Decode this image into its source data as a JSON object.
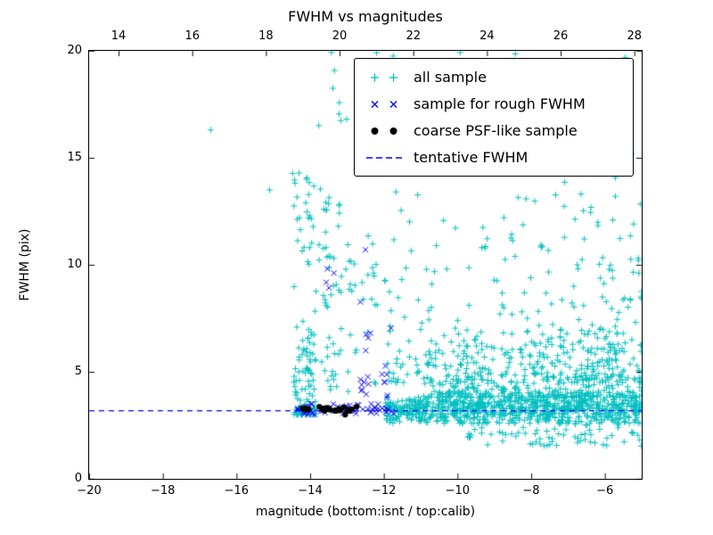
{
  "figure": {
    "title": "FWHM vs magnitudes",
    "xlabel": "magnitude (bottom:isnt / top:calib)",
    "ylabel": "FWHM (pix)"
  },
  "chart_data": {
    "type": "scatter",
    "title": "FWHM vs magnitudes",
    "xlabel": "magnitude (bottom:isnt / top:calib)",
    "ylabel": "FWHM (pix)",
    "xlim": [
      -20,
      -5
    ],
    "ylim": [
      0,
      20
    ],
    "x_ticks_bottom": [
      -20,
      -18,
      -16,
      -14,
      -12,
      -10,
      -8,
      -6
    ],
    "x_ticks_top": [
      14,
      16,
      18,
      20,
      22,
      24,
      26,
      28
    ],
    "x_top_range": [
      13.2,
      28.2
    ],
    "y_ticks": [
      0,
      5,
      10,
      15,
      20
    ],
    "grid": false,
    "legend_position": "upper right",
    "seed": 1337,
    "series": [
      {
        "name": "all sample",
        "marker": "plus",
        "color": "#00bfbf",
        "clusters": [
          {
            "count": 750,
            "x": [
              -11.95,
              -5.0
            ],
            "y": [
              2.6,
              4.0
            ],
            "yshape": "gauss"
          },
          {
            "count": 420,
            "x": [
              -10.9,
              -5.0
            ],
            "y": [
              3.8,
              7.0
            ],
            "yshape": "decay"
          },
          {
            "count": 230,
            "x": [
              -12.0,
              -5.0
            ],
            "y": [
              4.5,
              14.0
            ],
            "yshape": "decay"
          },
          {
            "count": 48,
            "x": [
              -12.2,
              -5.0
            ],
            "y": [
              14.0,
              20.0
            ],
            "yshape": "uniform"
          },
          {
            "count": 90,
            "x": [
              -9.8,
              -5.0
            ],
            "y": [
              1.5,
              2.9
            ],
            "yshape": "uniform"
          },
          {
            "count": 95,
            "x": [
              -14.45,
              -13.85
            ],
            "y": [
              3.0,
              7.0
            ],
            "yshape": "decay"
          },
          {
            "count": 40,
            "x": [
              -14.5,
              -13.55
            ],
            "y": [
              7.0,
              14.5
            ],
            "yshape": "uniform"
          },
          {
            "count": 30,
            "x": [
              -13.6,
              -12.9
            ],
            "y": [
              7.0,
              14.0
            ],
            "yshape": "uniform"
          },
          {
            "count": 25,
            "x": [
              -13.7,
              -12.2
            ],
            "y": [
              4.0,
              7.0
            ],
            "yshape": "uniform"
          },
          {
            "count": 20,
            "x": [
              -13.8,
              -11.6
            ],
            "y": [
              16.5,
              20.0
            ],
            "yshape": "uniform"
          },
          {
            "count": 16,
            "x": [
              -12.9,
              -12.1
            ],
            "y": [
              8.0,
              11.5
            ],
            "yshape": "uniform"
          },
          {
            "count": 40,
            "x": [
              -6.2,
              -5.0
            ],
            "y": [
              2.0,
              12.0
            ],
            "yshape": "uniform"
          }
        ],
        "points": [
          [
            -16.7,
            16.3
          ],
          [
            -15.1,
            13.5
          ]
        ]
      },
      {
        "name": "sample for rough FWHM",
        "marker": "x",
        "color": "#0000ff",
        "clusters": [
          {
            "count": 60,
            "x": [
              -14.35,
              -11.7
            ],
            "y": [
              3.0,
              3.55
            ],
            "yshape": "gauss"
          },
          {
            "count": 13,
            "x": [
              -12.65,
              -12.35
            ],
            "y": [
              3.8,
              10.8
            ],
            "yshape": "decay"
          },
          {
            "count": 8,
            "x": [
              -12.05,
              -11.75
            ],
            "y": [
              3.8,
              7.6
            ],
            "yshape": "decay"
          },
          {
            "count": 4,
            "x": [
              -13.6,
              -13.35
            ],
            "y": [
              8.8,
              10.2
            ],
            "yshape": "uniform"
          }
        ],
        "points": [
          [
            -12.5,
            10.7
          ]
        ]
      },
      {
        "name": "coarse PSF-like sample",
        "marker": "dot",
        "color": "#000000",
        "clusters": [
          {
            "count": 26,
            "x": [
              -14.3,
              -12.5
            ],
            "y": [
              3.12,
              3.38
            ],
            "yshape": "gauss"
          }
        ],
        "points": [
          [
            -13.05,
            3.0
          ]
        ]
      }
    ],
    "reference_lines": [
      {
        "name": "tentative FWHM",
        "y": 3.2,
        "color": "#0000ff",
        "style": "dashed"
      }
    ]
  }
}
